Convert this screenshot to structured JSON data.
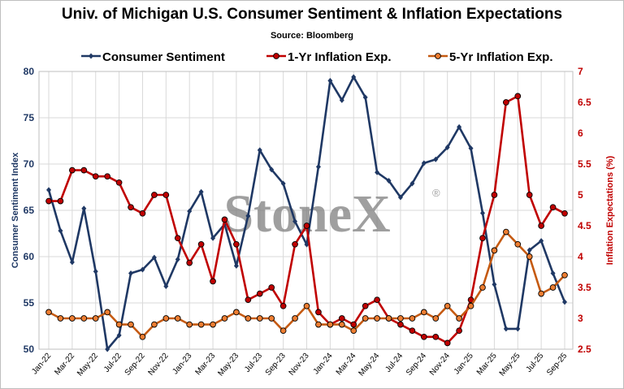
{
  "chart_data": {
    "type": "line",
    "title": "Univ. of Michigan U.S. Consumer Sentiment & Inflation Expectations",
    "subtitle": "Source: Bloomberg",
    "watermark": "StoneX",
    "watermark_mark": "®",
    "ylabel_left": "Consumer Sentiment Index",
    "ylabel_right": "Inflation Expectations (%)",
    "ylim_left": [
      50,
      80
    ],
    "ylim_right": [
      2.5,
      7
    ],
    "yticks_left": [
      "50",
      "55",
      "60",
      "65",
      "70",
      "75",
      "80"
    ],
    "yticks_right": [
      "2.5",
      "3",
      "3.5",
      "4",
      "4.5",
      "5",
      "5.5",
      "6",
      "6.5",
      "7"
    ],
    "grid": true,
    "legend_position": "top",
    "x": [
      "Jan-22",
      "Feb-22",
      "Mar-22",
      "Apr-22",
      "May-22",
      "Jun-22",
      "Jul-22",
      "Aug-22",
      "Sep-22",
      "Oct-22",
      "Nov-22",
      "Dec-22",
      "Jan-23",
      "Feb-23",
      "Mar-23",
      "Apr-23",
      "May-23",
      "Jun-23",
      "Jul-23",
      "Aug-23",
      "Sep-23",
      "Oct-23",
      "Nov-23",
      "Dec-23",
      "Jan-24",
      "Feb-24",
      "Mar-24",
      "Apr-24",
      "May-24",
      "Jun-24",
      "Jul-24",
      "Aug-24",
      "Sep-24",
      "Oct-24",
      "Nov-24",
      "Dec-24",
      "Jan-25",
      "Feb-25",
      "Mar-25",
      "Apr-25",
      "May-25",
      "Jun-25",
      "Jul-25",
      "Aug-25",
      "Sep-25"
    ],
    "xtick_labels": [
      "Jan-22",
      "Mar-22",
      "May-22",
      "Jul-22",
      "Sep-22",
      "Nov-22",
      "Jan-23",
      "Mar-23",
      "May-23",
      "Jul-23",
      "Sep-23",
      "Nov-23",
      "Jan-24",
      "Mar-24",
      "May-24",
      "Jul-24",
      "Sep-24",
      "Nov-24",
      "Jan-25",
      "Mar-25",
      "May-25",
      "Jul-25",
      "Sep-25"
    ],
    "series": [
      {
        "name": "Consumer Sentiment",
        "axis": "left",
        "color": "#1f3864",
        "marker": "diamond",
        "values": [
          67.2,
          62.8,
          59.4,
          65.2,
          58.4,
          50.0,
          51.5,
          58.2,
          58.6,
          59.9,
          56.8,
          59.7,
          64.9,
          67.0,
          62.0,
          63.5,
          59.0,
          64.4,
          71.5,
          69.4,
          67.9,
          63.8,
          61.3,
          69.7,
          79.0,
          76.9,
          79.4,
          77.2,
          69.1,
          68.2,
          66.4,
          67.9,
          70.1,
          70.5,
          71.8,
          74.0,
          71.7,
          64.7,
          57.0,
          52.2,
          52.2,
          60.7,
          61.7,
          58.2,
          55.1
        ]
      },
      {
        "name": "1-Yr Inflation Exp.",
        "axis": "right",
        "color": "#c00000",
        "marker": "circle",
        "values": [
          4.9,
          4.9,
          5.4,
          5.4,
          5.3,
          5.3,
          5.2,
          4.8,
          4.7,
          5.0,
          5.0,
          4.3,
          3.9,
          4.2,
          3.6,
          4.6,
          4.2,
          3.3,
          3.4,
          3.5,
          3.2,
          4.2,
          4.5,
          3.1,
          2.9,
          3.0,
          2.9,
          3.2,
          3.3,
          3.0,
          2.9,
          2.8,
          2.7,
          2.7,
          2.6,
          2.8,
          3.3,
          4.3,
          5.0,
          6.5,
          6.6,
          5.0,
          4.5,
          4.8,
          4.7
        ]
      },
      {
        "name": "5-Yr Inflation Exp.",
        "axis": "right",
        "color": "#c55a11",
        "marker": "circle",
        "values": [
          3.1,
          3.0,
          3.0,
          3.0,
          3.0,
          3.1,
          2.9,
          2.9,
          2.7,
          2.9,
          3.0,
          3.0,
          2.9,
          2.9,
          2.9,
          3.0,
          3.1,
          3.0,
          3.0,
          3.0,
          2.8,
          3.0,
          3.2,
          2.9,
          2.9,
          2.9,
          2.8,
          3.0,
          3.0,
          3.0,
          3.0,
          3.0,
          3.1,
          3.0,
          3.2,
          3.0,
          3.2,
          3.5,
          4.1,
          4.4,
          4.2,
          4.0,
          3.4,
          3.5,
          3.7
        ]
      }
    ]
  }
}
